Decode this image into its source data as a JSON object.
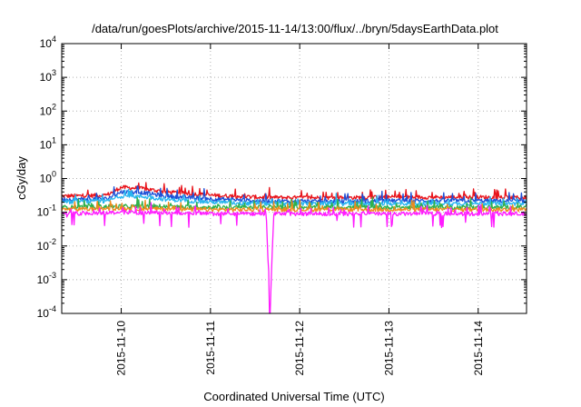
{
  "chart_data": {
    "type": "line",
    "title": "/data/run/goesPlots/archive/2015-11-14/13:00/flux/../bryn/5daysEarthData.plot",
    "xlabel": "Coordinated Universal Time (UTC)",
    "ylabel": "cGy/day",
    "y_scale": "log",
    "ylim": [
      0.0001,
      10000
    ],
    "xlim": [
      "2015-11-09T08:00",
      "2015-11-14T13:00"
    ],
    "x_ticks": [
      "2015-11-10",
      "2015-11-11",
      "2015-11-12",
      "2015-11-13",
      "2015-11-14"
    ],
    "y_ticks": [
      {
        "base": "10",
        "exp": "-4",
        "value": 0.0001
      },
      {
        "base": "10",
        "exp": "-3",
        "value": 0.001
      },
      {
        "base": "10",
        "exp": "-2",
        "value": 0.01
      },
      {
        "base": "10",
        "exp": "-1",
        "value": 0.1
      },
      {
        "base": "10",
        "exp": "0",
        "value": 1
      },
      {
        "base": "10",
        "exp": "1",
        "value": 10
      },
      {
        "base": "10",
        "exp": "2",
        "value": 100
      },
      {
        "base": "10",
        "exp": "3",
        "value": 1000
      },
      {
        "base": "10",
        "exp": "4",
        "value": 10000
      }
    ],
    "grid": true,
    "legend": "none",
    "series": [
      {
        "color": "#e8141b",
        "x": [
          "2015-11-09T08:00",
          "2015-11-09T20:00",
          "2015-11-10T00:00",
          "2015-11-10T06:00",
          "2015-11-10T12:00",
          "2015-11-11T00:00",
          "2015-11-11T12:00",
          "2015-11-12T00:00",
          "2015-11-12T12:00",
          "2015-11-13T00:00",
          "2015-11-13T12:00",
          "2015-11-14T00:00",
          "2015-11-14T13:00"
        ],
        "y": [
          0.3,
          0.32,
          0.55,
          0.5,
          0.4,
          0.32,
          0.28,
          0.27,
          0.27,
          0.28,
          0.28,
          0.28,
          0.27
        ]
      },
      {
        "color": "#1d4fd6",
        "x": [
          "2015-11-09T08:00",
          "2015-11-09T20:00",
          "2015-11-10T00:00",
          "2015-11-10T06:00",
          "2015-11-10T12:00",
          "2015-11-11T00:00",
          "2015-11-11T12:00",
          "2015-11-12T00:00",
          "2015-11-12T12:00",
          "2015-11-13T00:00",
          "2015-11-13T12:00",
          "2015-11-14T00:00",
          "2015-11-14T13:00"
        ],
        "y": [
          0.24,
          0.25,
          0.4,
          0.38,
          0.3,
          0.25,
          0.22,
          0.21,
          0.21,
          0.22,
          0.22,
          0.22,
          0.21
        ]
      },
      {
        "color": "#27b4ef",
        "x": [
          "2015-11-09T08:00",
          "2015-11-09T20:00",
          "2015-11-10T00:00",
          "2015-11-10T06:00",
          "2015-11-10T12:00",
          "2015-11-11T00:00",
          "2015-11-11T12:00",
          "2015-11-12T00:00",
          "2015-11-12T12:00",
          "2015-11-13T00:00",
          "2015-11-13T12:00",
          "2015-11-14T00:00",
          "2015-11-14T13:00"
        ],
        "y": [
          0.2,
          0.21,
          0.3,
          0.29,
          0.24,
          0.2,
          0.18,
          0.18,
          0.18,
          0.18,
          0.18,
          0.18,
          0.18
        ]
      },
      {
        "color": "#2fb04a",
        "x": [
          "2015-11-09T08:00",
          "2015-11-10T00:00",
          "2015-11-11T00:00",
          "2015-11-12T00:00",
          "2015-11-13T00:00",
          "2015-11-14T00:00",
          "2015-11-14T13:00"
        ],
        "y": [
          0.14,
          0.15,
          0.14,
          0.14,
          0.14,
          0.14,
          0.14
        ]
      },
      {
        "color": "#ee8a1c",
        "x": [
          "2015-11-09T08:00",
          "2015-11-10T00:00",
          "2015-11-11T00:00",
          "2015-11-12T00:00",
          "2015-11-13T00:00",
          "2015-11-14T00:00",
          "2015-11-14T13:00"
        ],
        "y": [
          0.12,
          0.13,
          0.12,
          0.12,
          0.12,
          0.12,
          0.12
        ]
      },
      {
        "color": "#ff1aff",
        "x": [
          "2015-11-09T08:00",
          "2015-11-10T00:00",
          "2015-11-11T00:00",
          "2015-11-11T15:00",
          "2015-11-11T16:00",
          "2015-11-11T17:00",
          "2015-11-12T00:00",
          "2015-11-13T00:00",
          "2015-11-14T00:00",
          "2015-11-14T13:00"
        ],
        "y": [
          0.09,
          0.1,
          0.09,
          0.09,
          0.0001,
          0.09,
          0.09,
          0.09,
          0.09,
          0.09
        ]
      }
    ]
  }
}
